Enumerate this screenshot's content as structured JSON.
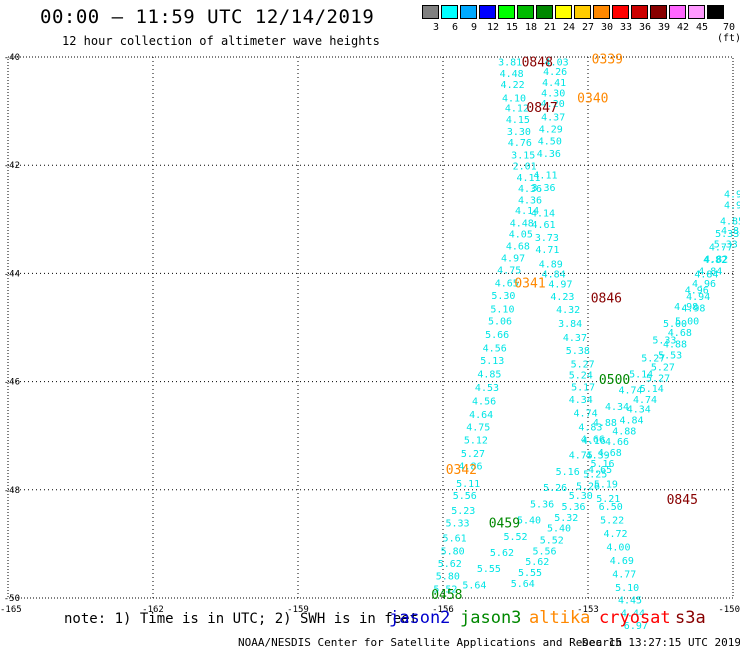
{
  "header": {
    "title": "00:00 — 11:59 UTC 12/14/2019",
    "subtitle": "12 hour collection of altimeter wave heights"
  },
  "color_scale": {
    "labels": [
      "3",
      "6",
      "9",
      "12",
      "15",
      "18",
      "21",
      "24",
      "27",
      "30",
      "33",
      "36",
      "39",
      "42",
      "45",
      "70 (ft)"
    ],
    "colors": [
      "#808080",
      "#00ffff",
      "#00aaff",
      "#0000ff",
      "#00ff00",
      "#00bb00",
      "#008800",
      "#ffff00",
      "#ffcc00",
      "#ff8800",
      "#ff0000",
      "#cc0000",
      "#880000",
      "#ff66ff",
      "#ff99ff",
      "#000000"
    ]
  },
  "map": {
    "lat_labels": [
      "-40",
      "-42",
      "-44",
      "-46",
      "-48",
      "-50"
    ],
    "lon_labels": [
      "-165",
      "-162",
      "-159",
      "-156",
      "-153",
      "-150"
    ],
    "lat_range": [
      -50,
      -40
    ],
    "lon_range": [
      -165,
      -150
    ],
    "grid": "dotted",
    "track_color": "#00e5e5"
  },
  "tracks": [
    {
      "id": "track-a",
      "points": [
        {
          "lat": -40.08,
          "lon": -154.61,
          "v": "3.81"
        },
        {
          "lat": -40.3,
          "lon": -154.58,
          "v": "4.48"
        },
        {
          "lat": -40.5,
          "lon": -154.56,
          "v": "4.22"
        },
        {
          "lat": -40.75,
          "lon": -154.53,
          "v": "4.10"
        },
        {
          "lat": -40.93,
          "lon": -154.47,
          "v": "4.12"
        },
        {
          "lat": -41.15,
          "lon": -154.45,
          "v": "4.15"
        },
        {
          "lat": -41.37,
          "lon": -154.43,
          "v": "3.30"
        },
        {
          "lat": -41.57,
          "lon": -154.41,
          "v": "4.76"
        },
        {
          "lat": -41.8,
          "lon": -154.34,
          "v": "3.15"
        },
        {
          "lat": -42.01,
          "lon": -154.31,
          "v": "2.01"
        },
        {
          "lat": -42.22,
          "lon": -154.23,
          "v": "4.11"
        },
        {
          "lat": -42.42,
          "lon": -154.2,
          "v": "4.36"
        },
        {
          "lat": -42.63,
          "lon": -154.2,
          "v": "4.36"
        },
        {
          "lat": -42.83,
          "lon": -154.26,
          "v": "4.14"
        },
        {
          "lat": -43.06,
          "lon": -154.37,
          "v": "4.48"
        },
        {
          "lat": -43.26,
          "lon": -154.39,
          "v": "4.05"
        },
        {
          "lat": -43.48,
          "lon": -154.45,
          "v": "4.68"
        },
        {
          "lat": -43.71,
          "lon": -154.55,
          "v": "4.97"
        },
        {
          "lat": -43.93,
          "lon": -154.63,
          "v": "4.75"
        },
        {
          "lat": -44.17,
          "lon": -154.68,
          "v": "4.65"
        },
        {
          "lat": -44.4,
          "lon": -154.75,
          "v": "5.30"
        },
        {
          "lat": -44.65,
          "lon": -154.77,
          "v": "5.10"
        },
        {
          "lat": -44.87,
          "lon": -154.82,
          "v": "5.06"
        },
        {
          "lat": -45.12,
          "lon": -154.88,
          "v": "5.66"
        },
        {
          "lat": -45.37,
          "lon": -154.93,
          "v": "4.56"
        },
        {
          "lat": -45.6,
          "lon": -154.98,
          "v": "5.13"
        },
        {
          "lat": -45.85,
          "lon": -155.04,
          "v": "4.85"
        },
        {
          "lat": -46.1,
          "lon": -155.09,
          "v": "4.53"
        },
        {
          "lat": -46.35,
          "lon": -155.15,
          "v": "4.56"
        },
        {
          "lat": -46.6,
          "lon": -155.21,
          "v": "4.64"
        },
        {
          "lat": -46.83,
          "lon": -155.27,
          "v": "4.75"
        },
        {
          "lat": -47.07,
          "lon": -155.32,
          "v": "5.12"
        },
        {
          "lat": -47.32,
          "lon": -155.38,
          "v": "5.27"
        },
        {
          "lat": -47.55,
          "lon": -155.43,
          "v": "4.86"
        },
        {
          "lat": -47.87,
          "lon": -155.48,
          "v": "5.11"
        },
        {
          "lat": -48.1,
          "lon": -155.55,
          "v": "5.56"
        },
        {
          "lat": -48.37,
          "lon": -155.58,
          "v": "5.23"
        },
        {
          "lat": -48.6,
          "lon": -155.7,
          "v": "5.33"
        },
        {
          "lat": -48.88,
          "lon": -155.76,
          "v": "5.61"
        },
        {
          "lat": -49.12,
          "lon": -155.8,
          "v": "5.80"
        },
        {
          "lat": -49.35,
          "lon": -155.86,
          "v": "5.62"
        },
        {
          "lat": -49.58,
          "lon": -155.9,
          "v": "5.80"
        },
        {
          "lat": -49.82,
          "lon": -155.95,
          "v": "5.52"
        }
      ]
    },
    {
      "id": "track-b",
      "points": [
        {
          "lat": -40.08,
          "lon": -153.65,
          "v": "4.03"
        },
        {
          "lat": -40.26,
          "lon": -153.68,
          "v": "4.26"
        },
        {
          "lat": -40.46,
          "lon": -153.7,
          "v": "4.41"
        },
        {
          "lat": -40.66,
          "lon": -153.72,
          "v": "4.30"
        },
        {
          "lat": -40.85,
          "lon": -153.73,
          "v": "4.20"
        },
        {
          "lat": -41.1,
          "lon": -153.72,
          "v": "4.37"
        },
        {
          "lat": -41.32,
          "lon": -153.77,
          "v": "4.29"
        },
        {
          "lat": -41.54,
          "lon": -153.79,
          "v": "4.50"
        },
        {
          "lat": -41.77,
          "lon": -153.81,
          "v": "4.36"
        },
        {
          "lat": -42.17,
          "lon": -153.88,
          "v": "4.11"
        },
        {
          "lat": -42.4,
          "lon": -153.92,
          "v": "3.36"
        },
        {
          "lat": -42.87,
          "lon": -153.93,
          "v": "4.14"
        },
        {
          "lat": -43.09,
          "lon": -153.92,
          "v": "4.61"
        },
        {
          "lat": -43.33,
          "lon": -153.85,
          "v": "3.73"
        },
        {
          "lat": -43.55,
          "lon": -153.84,
          "v": "4.71"
        },
        {
          "lat": -43.82,
          "lon": -153.77,
          "v": "4.89"
        },
        {
          "lat": -44.0,
          "lon": -153.71,
          "v": "4.84"
        },
        {
          "lat": -44.19,
          "lon": -153.57,
          "v": "4.97"
        },
        {
          "lat": -44.42,
          "lon": -153.53,
          "v": "4.23"
        },
        {
          "lat": -44.66,
          "lon": -153.41,
          "v": "4.32"
        },
        {
          "lat": -44.92,
          "lon": -153.37,
          "v": "3.84"
        },
        {
          "lat": -45.18,
          "lon": -153.27,
          "v": "4.37"
        },
        {
          "lat": -45.42,
          "lon": -153.21,
          "v": "5.38"
        },
        {
          "lat": -45.67,
          "lon": -153.11,
          "v": "5.27"
        },
        {
          "lat": -45.87,
          "lon": -153.15,
          "v": "5.24"
        },
        {
          "lat": -46.09,
          "lon": -153.1,
          "v": "5.17"
        },
        {
          "lat": -46.32,
          "lon": -153.15,
          "v": "4.34"
        },
        {
          "lat": -46.57,
          "lon": -153.05,
          "v": "4.74"
        },
        {
          "lat": -46.83,
          "lon": -152.95,
          "v": "4.83"
        },
        {
          "lat": -47.08,
          "lon": -152.88,
          "v": "4.16"
        },
        {
          "lat": -47.35,
          "lon": -152.8,
          "v": "4.39"
        },
        {
          "lat": -47.62,
          "lon": -152.75,
          "v": "4.65"
        },
        {
          "lat": -47.88,
          "lon": -152.63,
          "v": "5.19"
        },
        {
          "lat": -48.15,
          "lon": -152.58,
          "v": "5.21"
        },
        {
          "lat": -48.3,
          "lon": -152.53,
          "v": "6.50"
        },
        {
          "lat": -48.55,
          "lon": -152.5,
          "v": "5.22"
        },
        {
          "lat": -48.8,
          "lon": -152.43,
          "v": "4.72"
        },
        {
          "lat": -49.05,
          "lon": -152.37,
          "v": "4.00"
        },
        {
          "lat": -49.3,
          "lon": -152.3,
          "v": "4.69"
        },
        {
          "lat": -49.55,
          "lon": -152.25,
          "v": "4.77"
        },
        {
          "lat": -49.8,
          "lon": -152.19,
          "v": "5.10"
        },
        {
          "lat": -50.03,
          "lon": -152.13,
          "v": "4.45"
        },
        {
          "lat": -50.27,
          "lon": -152.07,
          "v": "4.44"
        },
        {
          "lat": -50.5,
          "lon": -152.01,
          "v": "6.97"
        }
      ]
    },
    {
      "id": "track-c",
      "points": [
        {
          "lat": -42.52,
          "lon": -150.0,
          "v": "4.9"
        },
        {
          "lat": -42.73,
          "lon": -150.0,
          "v": "4.9"
        },
        {
          "lat": -43.02,
          "lon": -150.02,
          "v": "4.85"
        },
        {
          "lat": -43.25,
          "lon": -150.12,
          "v": "5.33"
        },
        {
          "lat": -43.5,
          "lon": -150.25,
          "v": "4.77"
        },
        {
          "lat": -43.73,
          "lon": -150.37,
          "v": "4.82"
        },
        {
          "lat": -43.95,
          "lon": -150.47,
          "v": "4.84"
        },
        {
          "lat": -44.18,
          "lon": -150.6,
          "v": "4.96"
        },
        {
          "lat": -44.42,
          "lon": -150.72,
          "v": "4.94"
        },
        {
          "lat": -44.63,
          "lon": -150.82,
          "v": "4.98"
        },
        {
          "lat": -44.87,
          "lon": -150.95,
          "v": "5.00"
        },
        {
          "lat": -45.08,
          "lon": -151.1,
          "v": "4.68"
        },
        {
          "lat": -45.3,
          "lon": -151.2,
          "v": "4.88"
        },
        {
          "lat": -45.5,
          "lon": -151.3,
          "v": "5.53"
        },
        {
          "lat": -45.72,
          "lon": -151.45,
          "v": "5.27"
        },
        {
          "lat": -45.92,
          "lon": -151.55,
          "v": "5.27"
        },
        {
          "lat": -46.12,
          "lon": -151.68,
          "v": "5.14"
        },
        {
          "lat": -46.32,
          "lon": -151.82,
          "v": "4.74"
        },
        {
          "lat": -46.5,
          "lon": -151.95,
          "v": "4.34"
        },
        {
          "lat": -46.7,
          "lon": -152.1,
          "v": "4.84"
        },
        {
          "lat": -46.9,
          "lon": -152.25,
          "v": "4.88"
        },
        {
          "lat": -47.1,
          "lon": -152.4,
          "v": "4.66"
        },
        {
          "lat": -47.3,
          "lon": -152.55,
          "v": "4.68"
        },
        {
          "lat": -47.5,
          "lon": -152.7,
          "v": "5.16"
        },
        {
          "lat": -47.7,
          "lon": -152.85,
          "v": "5.25"
        },
        {
          "lat": -47.92,
          "lon": -153.0,
          "v": "5.26"
        },
        {
          "lat": -48.1,
          "lon": -153.15,
          "v": "5.30"
        },
        {
          "lat": -48.3,
          "lon": -153.3,
          "v": "5.36"
        },
        {
          "lat": -48.5,
          "lon": -153.45,
          "v": "5.32"
        },
        {
          "lat": -48.7,
          "lon": -153.6,
          "v": "5.40"
        },
        {
          "lat": -48.92,
          "lon": -153.75,
          "v": "5.52"
        },
        {
          "lat": -49.12,
          "lon": -153.9,
          "v": "5.56"
        },
        {
          "lat": -49.32,
          "lon": -154.05,
          "v": "5.62"
        },
        {
          "lat": -49.52,
          "lon": -154.2,
          "v": "5.55"
        },
        {
          "lat": -49.72,
          "lon": -154.35,
          "v": "5.64"
        }
      ]
    },
    {
      "id": "track-d",
      "points": [
        {
          "lat": -43.2,
          "lon": -150.0,
          "v": "4.85"
        },
        {
          "lat": -43.45,
          "lon": -150.15,
          "v": "5.33"
        },
        {
          "lat": -43.72,
          "lon": -150.35,
          "v": "4.82"
        },
        {
          "lat": -44.0,
          "lon": -150.55,
          "v": "4.84"
        },
        {
          "lat": -44.3,
          "lon": -150.75,
          "v": "4.96"
        },
        {
          "lat": -44.6,
          "lon": -150.97,
          "v": "4.98"
        },
        {
          "lat": -44.92,
          "lon": -151.2,
          "v": "5.00"
        },
        {
          "lat": -45.22,
          "lon": -151.42,
          "v": "5.33"
        },
        {
          "lat": -45.55,
          "lon": -151.65,
          "v": "5.27"
        },
        {
          "lat": -45.85,
          "lon": -151.9,
          "v": "5.14"
        },
        {
          "lat": -46.15,
          "lon": -152.12,
          "v": "4.74"
        },
        {
          "lat": -46.45,
          "lon": -152.4,
          "v": "4.34"
        },
        {
          "lat": -46.75,
          "lon": -152.65,
          "v": "4.88"
        },
        {
          "lat": -47.05,
          "lon": -152.9,
          "v": "4.66"
        },
        {
          "lat": -47.35,
          "lon": -153.15,
          "v": "4.75"
        },
        {
          "lat": -47.65,
          "lon": -153.42,
          "v": "5.16"
        },
        {
          "lat": -47.95,
          "lon": -153.68,
          "v": "5.26"
        },
        {
          "lat": -48.25,
          "lon": -153.95,
          "v": "5.36"
        },
        {
          "lat": -48.55,
          "lon": -154.22,
          "v": "5.40"
        },
        {
          "lat": -48.85,
          "lon": -154.5,
          "v": "5.52"
        },
        {
          "lat": -49.15,
          "lon": -154.78,
          "v": "5.62"
        },
        {
          "lat": -49.45,
          "lon": -155.05,
          "v": "5.55"
        },
        {
          "lat": -49.75,
          "lon": -155.35,
          "v": "5.64"
        }
      ]
    }
  ],
  "time_labels": [
    {
      "text": "0848",
      "lat": -40.08,
      "lon": -154.05,
      "color": "#880000"
    },
    {
      "text": "0339",
      "lat": -40.03,
      "lon": -152.6,
      "color": "#ff8800"
    },
    {
      "text": "0340",
      "lat": -40.75,
      "lon": -152.9,
      "color": "#ff8800"
    },
    {
      "text": "0847",
      "lat": -40.92,
      "lon": -153.95,
      "color": "#880000"
    },
    {
      "text": "0341",
      "lat": -44.17,
      "lon": -154.2,
      "color": "#ff8800"
    },
    {
      "text": "0846",
      "lat": -44.45,
      "lon": -152.62,
      "color": "#880000"
    },
    {
      "text": "0500",
      "lat": -45.95,
      "lon": -152.45,
      "color": "#008800"
    },
    {
      "text": "0342",
      "lat": -47.62,
      "lon": -155.62,
      "color": "#ff8800"
    },
    {
      "text": "0845",
      "lat": -48.17,
      "lon": -151.05,
      "color": "#880000"
    },
    {
      "text": "0459",
      "lat": -48.6,
      "lon": -154.73,
      "color": "#008800"
    },
    {
      "text": "0458",
      "lat": -49.93,
      "lon": -155.92,
      "color": "#008800"
    }
  ],
  "footer": {
    "note": "note: 1) Time is in UTC; 2) SWH is in feet",
    "satellites": [
      {
        "name": "jason2",
        "color": "#0000cc"
      },
      {
        "name": "jason3",
        "color": "#008800"
      },
      {
        "name": "altika",
        "color": "#ff8800"
      },
      {
        "name": "cryosat",
        "color": "#ff0000"
      },
      {
        "name": "s3a",
        "color": "#880000"
      }
    ],
    "credit": "NOAA/NESDIS Center for Satellite Applications and Research",
    "timestamp": "Dec 15 13:27:15 UTC 2019"
  }
}
